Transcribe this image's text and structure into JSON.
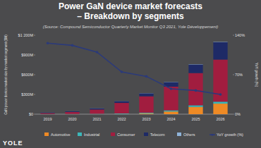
{
  "chart_data": {
    "type": "bar",
    "title": "Power GaN device market forecasts – Breakdown by segments",
    "subtitle": "(Source: Compound Semiconductor Quarterly Market Monitor Q3 2021, Yole Développement)",
    "y_label": "GaN power device market size by market segment ($M)",
    "y2_label": "YoY growth (%)",
    "annotations": [
      "YOLE"
    ],
    "categories": [
      "2019",
      "2020",
      "2021",
      "2022",
      "2023",
      "2024",
      "2025",
      "2026"
    ],
    "stacked": true,
    "grid": false,
    "legend": "bottom",
    "ylim": [
      0,
      1200
    ],
    "yticks": [
      {
        "value": 0,
        "label": "$0"
      },
      {
        "value": 300,
        "label": "$300M"
      },
      {
        "value": 600,
        "label": "$600M"
      },
      {
        "value": 900,
        "label": "$900M"
      },
      {
        "value": 1200,
        "label": "$1 200M"
      }
    ],
    "y2lim": [
      0,
      140
    ],
    "y2ticks": [
      {
        "value": 0,
        "label": "0%"
      },
      {
        "value": 70,
        "label": "70%"
      },
      {
        "value": 140,
        "label": "140%"
      }
    ],
    "series": [
      {
        "name": "Automotive",
        "type": "bar",
        "color": "#ee8a25",
        "values": [
          0,
          0,
          1,
          3,
          10,
          40,
          110,
          160
        ]
      },
      {
        "name": "Industrial",
        "type": "bar",
        "color": "#3cb6b8",
        "values": [
          2,
          3,
          5,
          8,
          12,
          18,
          25,
          30
        ]
      },
      {
        "name": "Consumer",
        "type": "bar",
        "color": "#a11d3f",
        "values": [
          15,
          30,
          65,
          160,
          250,
          360,
          490,
          640
        ]
      },
      {
        "name": "Telecom",
        "type": "bar",
        "color": "#1e2a66",
        "values": [
          8,
          12,
          17,
          27,
          45,
          70,
          130,
          265
        ]
      },
      {
        "name": "Others",
        "type": "bar",
        "color": "#8fb3d9",
        "values": [
          1,
          1,
          2,
          2,
          3,
          4,
          5,
          5
        ]
      },
      {
        "name": "YoY growth (%)",
        "type": "line",
        "axis": "y2",
        "color": "#2b3a7a",
        "marker": "circle",
        "values": [
          126,
          122,
          110,
          75,
          67,
          45,
          42,
          35
        ]
      }
    ]
  }
}
